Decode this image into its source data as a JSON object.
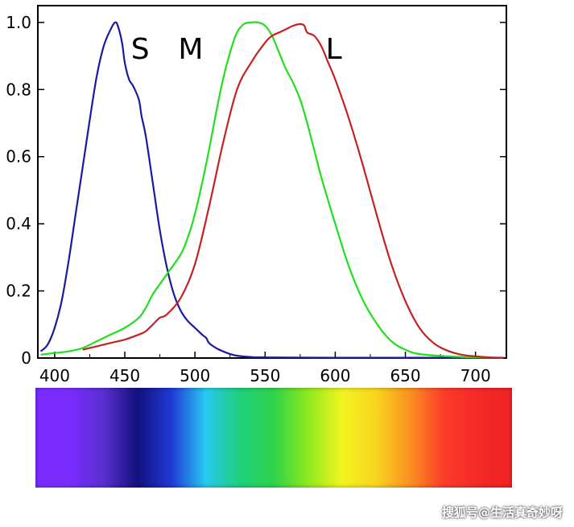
{
  "chart_data": {
    "type": "line",
    "xlim": [
      388,
      722
    ],
    "ylim": [
      0,
      1.05
    ],
    "x_ticks": [
      400,
      450,
      500,
      550,
      600,
      650,
      700
    ],
    "y_ticks": [
      {
        "value": 0,
        "label": "0"
      },
      {
        "value": 0.2,
        "label": "0.2"
      },
      {
        "value": 0.4,
        "label": "0.4"
      },
      {
        "value": 0.6,
        "label": "0.6"
      },
      {
        "value": 0.8,
        "label": "0.8"
      },
      {
        "value": 1.0,
        "label": "1.0"
      }
    ],
    "grid": false,
    "annotations": [
      {
        "text": "S",
        "x": 461,
        "y": 0.92
      },
      {
        "text": "M",
        "x": 497,
        "y": 0.92
      },
      {
        "text": "L",
        "x": 599,
        "y": 0.92
      }
    ],
    "series": [
      {
        "key": "S",
        "color": "#1a1aa0",
        "x": [
          390,
          395,
          400,
          405,
          410,
          415,
          420,
          425,
          430,
          435,
          440,
          443,
          445,
          448,
          450,
          453,
          456,
          460,
          462,
          465,
          470,
          475,
          480,
          485,
          490,
          495,
          500,
          505,
          508,
          510,
          515,
          520,
          525,
          530,
          540,
          550,
          600,
          650,
          700,
          720
        ],
        "y": [
          0.02,
          0.04,
          0.09,
          0.17,
          0.29,
          0.43,
          0.57,
          0.71,
          0.84,
          0.93,
          0.98,
          1.0,
          0.99,
          0.94,
          0.88,
          0.83,
          0.81,
          0.77,
          0.72,
          0.66,
          0.52,
          0.38,
          0.27,
          0.19,
          0.14,
          0.11,
          0.09,
          0.07,
          0.06,
          0.045,
          0.03,
          0.02,
          0.012,
          0.007,
          0.003,
          0.002,
          0.001,
          0.001,
          0.001,
          0.001
        ]
      },
      {
        "key": "M",
        "color": "#22dd22",
        "x": [
          390,
          400,
          410,
          420,
          430,
          440,
          450,
          460,
          465,
          470,
          480,
          490,
          495,
          500,
          505,
          510,
          515,
          520,
          525,
          530,
          535,
          540,
          545,
          550,
          555,
          560,
          565,
          570,
          575,
          580,
          585,
          590,
          600,
          610,
          620,
          630,
          640,
          650,
          660,
          680,
          700,
          720
        ],
        "y": [
          0.01,
          0.015,
          0.02,
          0.03,
          0.05,
          0.07,
          0.09,
          0.12,
          0.15,
          0.19,
          0.25,
          0.31,
          0.36,
          0.43,
          0.52,
          0.62,
          0.73,
          0.83,
          0.91,
          0.97,
          0.995,
          1.0,
          1.0,
          0.99,
          0.96,
          0.91,
          0.86,
          0.82,
          0.77,
          0.7,
          0.62,
          0.54,
          0.4,
          0.27,
          0.17,
          0.1,
          0.05,
          0.025,
          0.012,
          0.005,
          0.002,
          0.001
        ]
      },
      {
        "key": "L",
        "color": "#c42222",
        "x": [
          420,
          430,
          440,
          450,
          460,
          465,
          470,
          475,
          480,
          490,
          500,
          510,
          520,
          530,
          540,
          550,
          555,
          560,
          565,
          570,
          575,
          578,
          580,
          585,
          590,
          595,
          600,
          610,
          620,
          630,
          640,
          650,
          660,
          670,
          680,
          690,
          700,
          710,
          720
        ],
        "y": [
          0.025,
          0.035,
          0.045,
          0.055,
          0.07,
          0.08,
          0.1,
          0.12,
          0.13,
          0.18,
          0.28,
          0.45,
          0.64,
          0.8,
          0.88,
          0.94,
          0.96,
          0.97,
          0.98,
          0.99,
          0.995,
          0.99,
          0.97,
          0.96,
          0.93,
          0.88,
          0.83,
          0.71,
          0.57,
          0.42,
          0.28,
          0.17,
          0.09,
          0.045,
          0.022,
          0.01,
          0.005,
          0.002,
          0.001
        ]
      }
    ],
    "spectrum_colors": [
      "#7a2cff",
      "#7a2cff",
      "#5a2fd0",
      "#12107e",
      "#1f3bd6",
      "#27c9f0",
      "#1fcf7b",
      "#2fd34a",
      "#8dea1e",
      "#f1f41f",
      "#f8d51f",
      "#fb9020",
      "#fb3d2a",
      "#f52828",
      "#f02424"
    ]
  },
  "watermark": "搜狐号@生活真奇妙呀"
}
